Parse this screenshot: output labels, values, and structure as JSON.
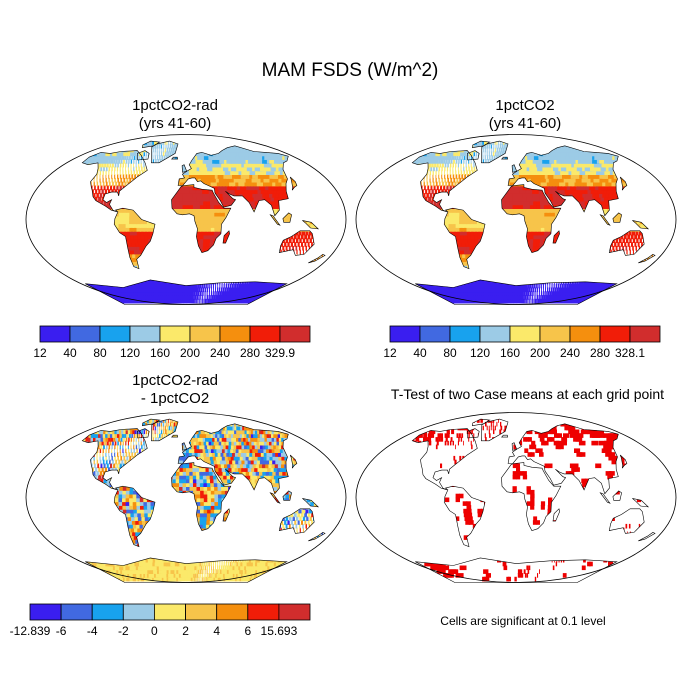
{
  "figure_title": "MAM FSDS (W/m^2)",
  "panels": [
    {
      "title_line1": "1pctCO2-rad",
      "title_line2": "(yrs 41-60)"
    },
    {
      "title_line1": "1pctCO2",
      "title_line2": "(yrs 41-60)"
    },
    {
      "title_line1": "1pctCO2-rad",
      "title_line2": "- 1pctCO2"
    },
    {
      "title_line1": "T-Test of two Case means at each grid point",
      "title_line2": ""
    }
  ],
  "colorbars": [
    {
      "labels": [
        "12",
        "40",
        "80",
        "120",
        "160",
        "200",
        "240",
        "280",
        "329.9"
      ],
      "colors": [
        "#3a1ef0",
        "#4169e1",
        "#18a2ee",
        "#9ccbe6",
        "#fbe96a",
        "#f7c44a",
        "#f58f0e",
        "#f11d08",
        "#d12d2d"
      ]
    },
    {
      "labels": [
        "12",
        "40",
        "80",
        "120",
        "160",
        "200",
        "240",
        "280",
        "328.1"
      ],
      "colors": [
        "#3a1ef0",
        "#4169e1",
        "#18a2ee",
        "#9ccbe6",
        "#fbe96a",
        "#f7c44a",
        "#f58f0e",
        "#f11d08",
        "#d12d2d"
      ]
    },
    {
      "labels": [
        "-12.839",
        "-6",
        "-4",
        "-2",
        "0",
        "2",
        "4",
        "6",
        "15.693"
      ],
      "colors": [
        "#3a1ef0",
        "#4169e1",
        "#18a2ee",
        "#9ccbe6",
        "#fbe96a",
        "#f7c44a",
        "#f58f0e",
        "#f11d08",
        "#d12d2d"
      ]
    }
  ],
  "significance_note": "Cells are significant at 0.1 level",
  "colors": {
    "land_outline": "#000000",
    "significance": "#ee0000"
  }
}
